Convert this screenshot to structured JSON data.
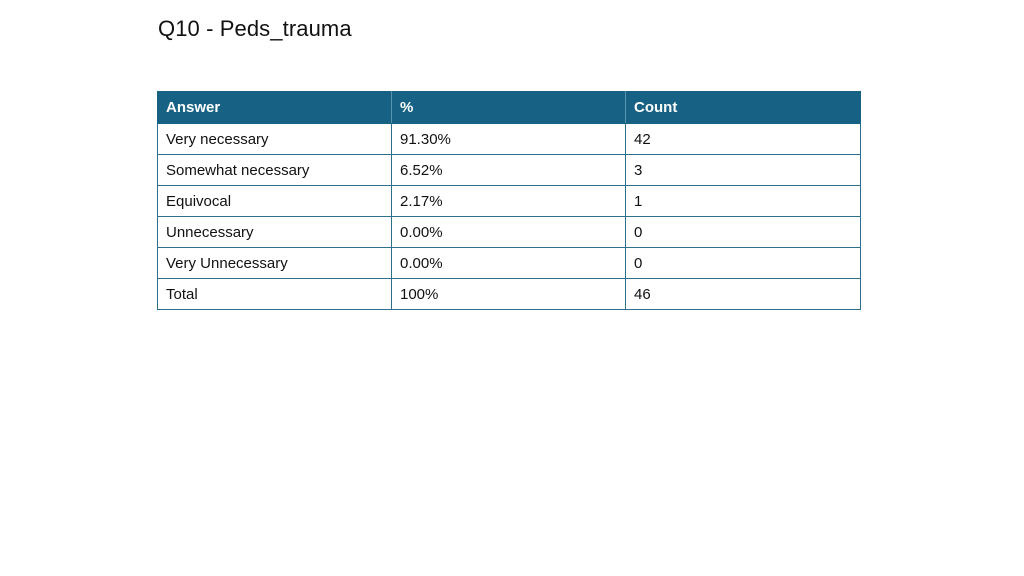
{
  "slide": {
    "title": "Q10 - Peds_trauma"
  },
  "table": {
    "headers": [
      "Answer",
      "%",
      "Count"
    ],
    "rows": [
      [
        "Very necessary",
        "91.30%",
        "42"
      ],
      [
        "Somewhat necessary",
        "6.52%",
        "3"
      ],
      [
        "Equivocal",
        "2.17%",
        "1"
      ],
      [
        "Unnecessary",
        "0.00%",
        "0"
      ],
      [
        "Very Unnecessary",
        "0.00%",
        "0"
      ],
      [
        "Total",
        "100%",
        "46"
      ]
    ]
  },
  "colors": {
    "header_bg": "#176284",
    "border": "#2e6f8e"
  }
}
